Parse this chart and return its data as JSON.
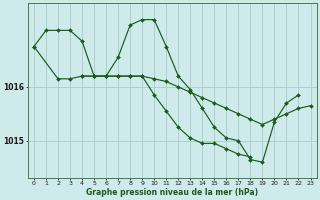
{
  "title": "Graphe pression niveau de la mer (hPa)",
  "bg_color": "#ceeaea",
  "grid_color": "#a8cccc",
  "line_color": "#1a5c1a",
  "marker_color": "#1a5c1a",
  "xlim": [
    -0.5,
    23.5
  ],
  "ylim": [
    1014.3,
    1017.55
  ],
  "yticks": [
    1015,
    1016
  ],
  "xticks": [
    0,
    1,
    2,
    3,
    4,
    5,
    6,
    7,
    8,
    9,
    10,
    11,
    12,
    13,
    14,
    15,
    16,
    17,
    18,
    19,
    20,
    21,
    22,
    23
  ],
  "series": [
    {
      "x": [
        0,
        1,
        2,
        3,
        4,
        5,
        6,
        7,
        8,
        9,
        10,
        11,
        12,
        13,
        14,
        15,
        16,
        17,
        18,
        19,
        20,
        21,
        22
      ],
      "y": [
        1016.75,
        1017.05,
        1017.05,
        1017.05,
        1016.85,
        1016.2,
        1016.2,
        1016.55,
        1017.15,
        1017.25,
        1017.25,
        1016.75,
        1016.2,
        1015.95,
        1015.6,
        1015.25,
        1015.05,
        1015.0,
        1014.65,
        1014.6,
        1015.35,
        1015.7,
        1015.85
      ]
    },
    {
      "x": [
        0,
        2,
        3,
        4,
        5,
        6,
        7,
        8,
        9,
        10,
        11,
        12,
        13,
        14,
        15,
        16,
        17,
        18
      ],
      "y": [
        1016.75,
        1016.15,
        1016.15,
        1016.2,
        1016.2,
        1016.2,
        1016.2,
        1016.2,
        1016.2,
        1015.85,
        1015.55,
        1015.25,
        1015.05,
        1014.95,
        1014.95,
        1014.85,
        1014.75,
        1014.7
      ]
    },
    {
      "x": [
        4,
        5,
        6,
        7,
        8,
        9,
        10,
        11,
        12,
        13,
        14,
        15,
        16,
        17,
        18,
        19,
        20,
        21,
        22,
        23
      ],
      "y": [
        1016.2,
        1016.2,
        1016.2,
        1016.2,
        1016.2,
        1016.2,
        1016.15,
        1016.1,
        1016.0,
        1015.9,
        1015.8,
        1015.7,
        1015.6,
        1015.5,
        1015.4,
        1015.3,
        1015.4,
        1015.5,
        1015.6,
        1015.65
      ]
    }
  ]
}
